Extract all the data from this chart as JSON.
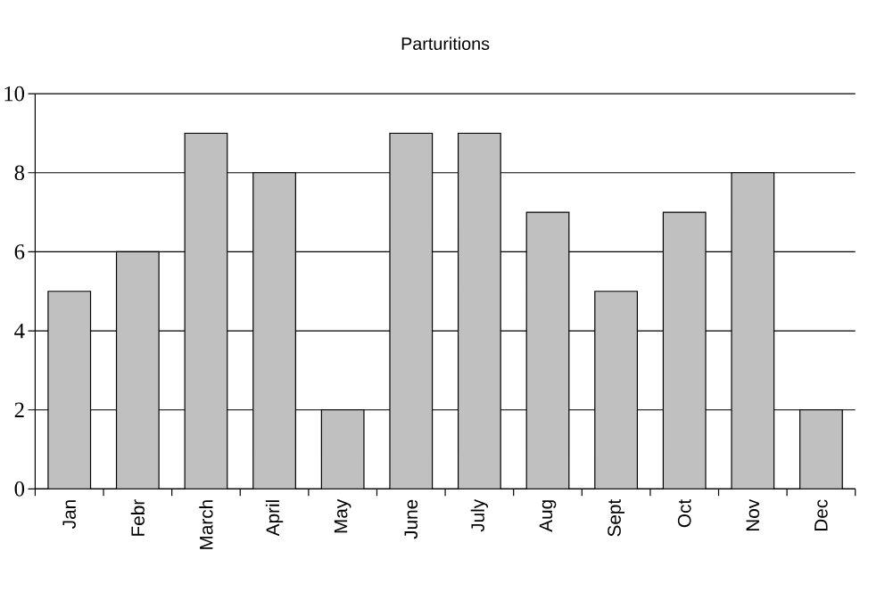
{
  "chart_data": {
    "type": "bar",
    "title": "Parturitions",
    "categories": [
      "Jan",
      "Febr",
      "March",
      "April",
      "May",
      "June",
      "July",
      "Aug",
      "Sept",
      "Oct",
      "Nov",
      "Dec"
    ],
    "values": [
      5,
      6,
      9,
      8,
      2,
      9,
      9,
      7,
      5,
      7,
      8,
      2
    ],
    "color": "#c0c0c0",
    "ylim": [
      0,
      10
    ],
    "yticks": [
      0,
      2,
      4,
      6,
      8,
      10
    ],
    "grid": "y"
  }
}
